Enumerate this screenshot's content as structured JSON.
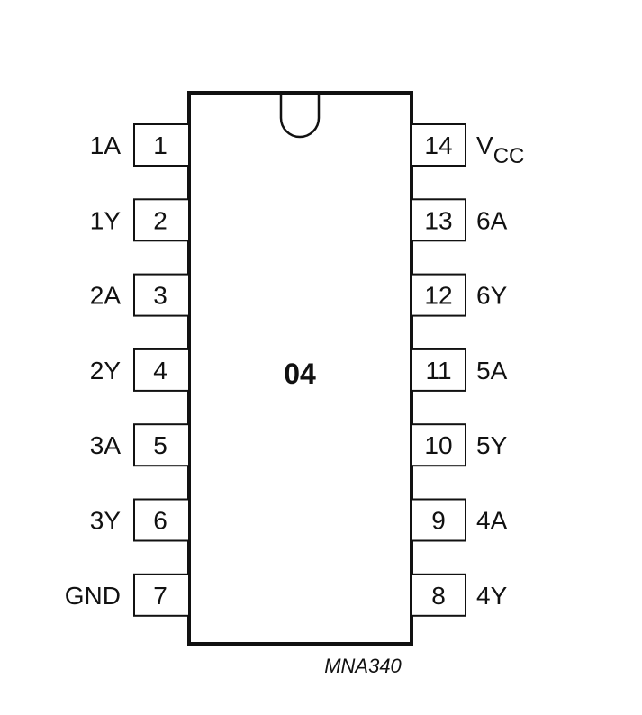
{
  "chip": {
    "label": "04",
    "part_code": "MNA340"
  },
  "left_pins": [
    {
      "number": "1",
      "label": "1A"
    },
    {
      "number": "2",
      "label": "1Y"
    },
    {
      "number": "3",
      "label": "2A"
    },
    {
      "number": "4",
      "label": "2Y"
    },
    {
      "number": "5",
      "label": "3A"
    },
    {
      "number": "6",
      "label": "3Y"
    },
    {
      "number": "7",
      "label": "GND"
    }
  ],
  "right_pins": [
    {
      "number": "14",
      "label": "V",
      "label_sub": "CC"
    },
    {
      "number": "13",
      "label": "6A"
    },
    {
      "number": "12",
      "label": "6Y"
    },
    {
      "number": "11",
      "label": "5A"
    },
    {
      "number": "10",
      "label": "5Y"
    },
    {
      "number": "9",
      "label": "4A"
    },
    {
      "number": "8",
      "label": "4Y"
    }
  ]
}
